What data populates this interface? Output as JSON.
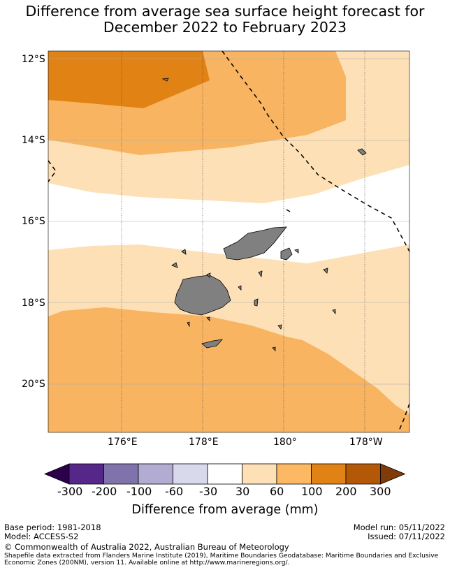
{
  "title": {
    "line1": "Difference from average sea surface height forecast for",
    "line2": "December 2022 to February 2023"
  },
  "map": {
    "lat_labels": [
      "12°S",
      "14°S",
      "16°S",
      "18°S",
      "20°S"
    ],
    "lon_labels": [
      "176°E",
      "178°E",
      "180°",
      "178°W"
    ],
    "colors": {
      "band_30_60": "#fde0b6",
      "band_60_100": "#f8b461",
      "band_100_200": "#e08214",
      "land": "#808080",
      "gridline": "#444444",
      "eez": "#000000"
    }
  },
  "colorbar": {
    "ticks": [
      "-300",
      "-200",
      "-100",
      "-60",
      "-30",
      "30",
      "60",
      "100",
      "200",
      "300"
    ],
    "colors": [
      "#2d004b",
      "#542788",
      "#8073ac",
      "#b2abd2",
      "#d8daeb",
      "#ffffff",
      "#fee0b6",
      "#fdb863",
      "#e08214",
      "#b35806",
      "#7f3b08"
    ],
    "label": "Difference from average (mm)"
  },
  "footer": {
    "base_period": "Base period: 1981-2018",
    "model": "Model: ACCESS-S2",
    "model_run": "Model run: 05/11/2022",
    "issued": "Issued: 07/11/2022",
    "copyright": "© Commonwealth of Australia 2022, Australian Bureau of Meteorology",
    "shapefile_line1": "Shapefile data extracted from Flanders Marine Institute (2019), Maritime Boundaries Geodatabase: Maritime Boundaries and Exclusive",
    "shapefile_line2": "Economic Zones (200NM), version 11. Available online at http://www.marineregions.org/."
  }
}
